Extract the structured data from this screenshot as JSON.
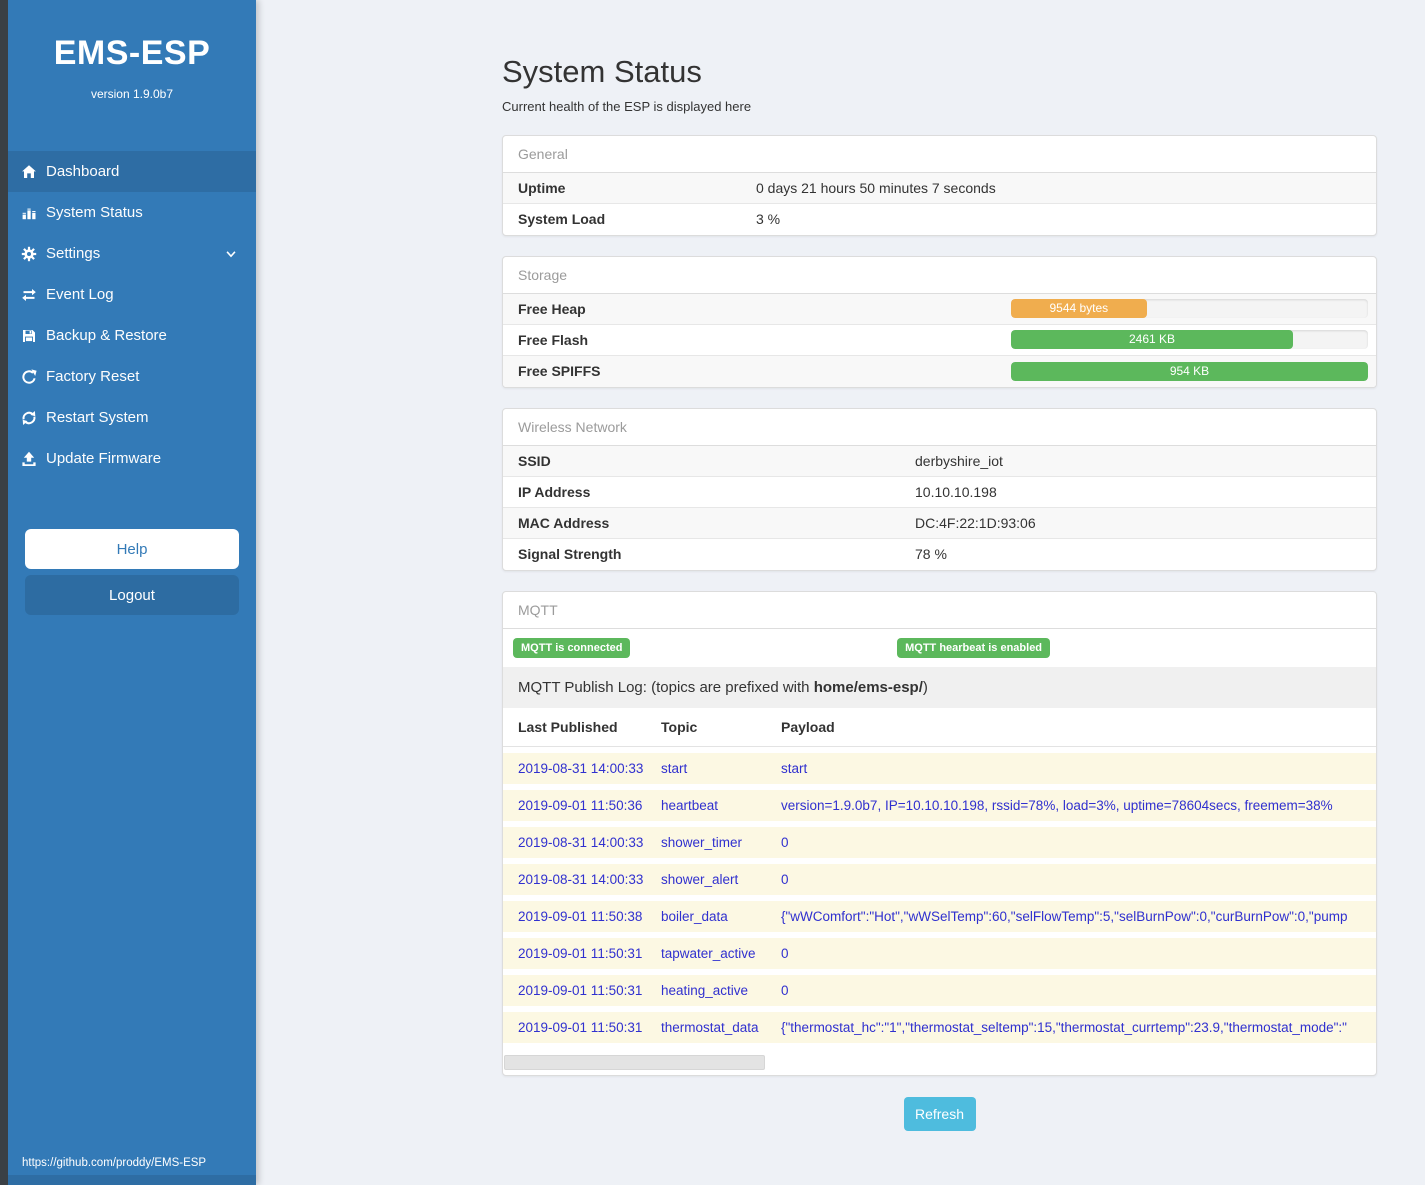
{
  "colors": {
    "sidebar_blue": "#337ab7",
    "sidebar_active_blue": "#2e6da4",
    "edge_strip": "#3a4045",
    "badge_green": "#5cb85c",
    "bar_orange": "#f0ad4e",
    "bar_green": "#5cb85c",
    "refresh_blue": "#4ebcde",
    "log_text_blue": "#3030cf"
  },
  "sidebar": {
    "title": "EMS-ESP",
    "version": "version 1.9.0b7",
    "nav": [
      {
        "label": "Dashboard",
        "icon": "home-icon",
        "active": true,
        "chevron": false
      },
      {
        "label": "System Status",
        "icon": "bar-chart-icon",
        "active": false,
        "chevron": false
      },
      {
        "label": "Settings",
        "icon": "gear-icon",
        "active": false,
        "chevron": true
      },
      {
        "label": "Event Log",
        "icon": "exchange-icon",
        "active": false,
        "chevron": false
      },
      {
        "label": "Backup & Restore",
        "icon": "save-icon",
        "active": false,
        "chevron": false
      },
      {
        "label": "Factory Reset",
        "icon": "redo-icon",
        "active": false,
        "chevron": false
      },
      {
        "label": "Restart System",
        "icon": "sync-icon",
        "active": false,
        "chevron": false
      },
      {
        "label": "Update Firmware",
        "icon": "upload-icon",
        "active": false,
        "chevron": false
      }
    ],
    "help_label": "Help",
    "logout_label": "Logout",
    "footer_link": "https://github.com/proddy/EMS-ESP"
  },
  "header": {
    "title": "System Status",
    "subtitle": "Current health of the ESP is displayed here"
  },
  "general": {
    "title": "General",
    "rows": [
      {
        "label": "Uptime",
        "value": "0 days 21 hours 50 minutes 7 seconds"
      },
      {
        "label": "System Load",
        "value": "3 %"
      }
    ]
  },
  "storage": {
    "title": "Storage",
    "rows": [
      {
        "label": "Free Heap",
        "bar_text": "9544 bytes",
        "percent": 38,
        "color": "#f0ad4e"
      },
      {
        "label": "Free Flash",
        "bar_text": "2461 KB",
        "percent": 79,
        "color": "#5cb85c"
      },
      {
        "label": "Free SPIFFS",
        "bar_text": "954 KB",
        "percent": 100,
        "color": "#5cb85c"
      }
    ]
  },
  "wireless": {
    "title": "Wireless Network",
    "rows": [
      {
        "label": "SSID",
        "value": "derbyshire_iot"
      },
      {
        "label": "IP Address",
        "value": "10.10.10.198"
      },
      {
        "label": "MAC Address",
        "value": "DC:4F:22:1D:93:06"
      },
      {
        "label": "Signal Strength",
        "value": "78 %"
      }
    ]
  },
  "mqtt": {
    "title": "MQTT",
    "badges": [
      "MQTT is connected",
      "MQTT hearbeat is enabled"
    ],
    "publish_log": {
      "text": "MQTT Publish Log: (topics are prefixed with ",
      "bold": "home/ems-esp/",
      "suffix": ")"
    },
    "table": {
      "headers": [
        "Last Published",
        "Topic",
        "Payload"
      ],
      "rows": [
        {
          "published": "2019-08-31 14:00:33",
          "topic": "start",
          "payload": "start"
        },
        {
          "published": "2019-09-01 11:50:36",
          "topic": "heartbeat",
          "payload": "version=1.9.0b7, IP=10.10.10.198, rssid=78%, load=3%, uptime=78604secs, freemem=38%"
        },
        {
          "published": "2019-08-31 14:00:33",
          "topic": "shower_timer",
          "payload": "0"
        },
        {
          "published": "2019-08-31 14:00:33",
          "topic": "shower_alert",
          "payload": "0"
        },
        {
          "published": "2019-09-01 11:50:38",
          "topic": "boiler_data",
          "payload": "{\"wWComfort\":\"Hot\",\"wWSelTemp\":60,\"selFlowTemp\":5,\"selBurnPow\":0,\"curBurnPow\":0,\"pump"
        },
        {
          "published": "2019-09-01 11:50:31",
          "topic": "tapwater_active",
          "payload": "0"
        },
        {
          "published": "2019-09-01 11:50:31",
          "topic": "heating_active",
          "payload": "0"
        },
        {
          "published": "2019-09-01 11:50:31",
          "topic": "thermostat_data",
          "payload": "{\"thermostat_hc\":\"1\",\"thermostat_seltemp\":15,\"thermostat_currtemp\":23.9,\"thermostat_mode\":\""
        }
      ]
    }
  },
  "refresh_label": "Refresh"
}
